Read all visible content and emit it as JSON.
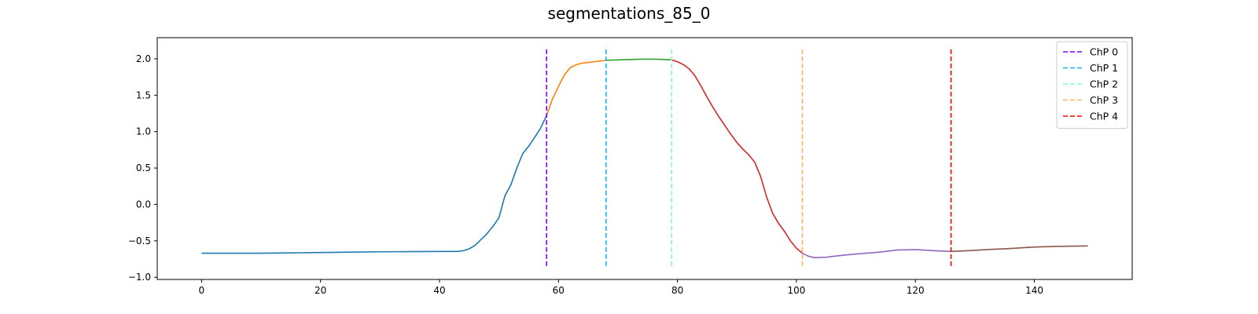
{
  "chart_data": {
    "type": "line",
    "title": "segmentations_85_0",
    "xlabel": "",
    "ylabel": "",
    "xlim": [
      -7.45,
      156.45
    ],
    "ylim": [
      -1.03,
      2.29
    ],
    "xticks": [
      0,
      20,
      40,
      60,
      80,
      100,
      120,
      140
    ],
    "yticks": [
      -1.0,
      -0.5,
      0.0,
      0.5,
      1.0,
      1.5,
      2.0
    ],
    "grid": false,
    "legend_position": "top-right",
    "series": [
      {
        "color": "#1f77b4",
        "points": [
          [
            0,
            -0.67
          ],
          [
            5,
            -0.67
          ],
          [
            10,
            -0.67
          ],
          [
            15,
            -0.665
          ],
          [
            20,
            -0.66
          ],
          [
            25,
            -0.655
          ],
          [
            30,
            -0.65
          ],
          [
            35,
            -0.648
          ],
          [
            40,
            -0.645
          ],
          [
            43,
            -0.645
          ],
          [
            44,
            -0.635
          ],
          [
            45,
            -0.61
          ],
          [
            46,
            -0.56
          ],
          [
            47,
            -0.48
          ],
          [
            48,
            -0.4
          ],
          [
            49,
            -0.3
          ],
          [
            50,
            -0.18
          ],
          [
            51,
            0.12
          ],
          [
            52,
            0.27
          ],
          [
            53,
            0.5
          ],
          [
            54,
            0.7
          ],
          [
            55,
            0.8
          ],
          [
            56,
            0.92
          ],
          [
            57,
            1.05
          ],
          [
            58,
            1.22
          ]
        ]
      },
      {
        "color": "#ff7f0e",
        "points": [
          [
            58,
            1.22
          ],
          [
            59,
            1.45
          ],
          [
            60,
            1.62
          ],
          [
            61,
            1.78
          ],
          [
            62,
            1.88
          ],
          [
            63,
            1.92
          ],
          [
            64,
            1.94
          ],
          [
            65,
            1.95
          ],
          [
            66,
            1.96
          ],
          [
            67,
            1.97
          ],
          [
            68,
            1.98
          ]
        ]
      },
      {
        "color": "#2ca02c",
        "points": [
          [
            68,
            1.98
          ],
          [
            70,
            1.985
          ],
          [
            72,
            1.99
          ],
          [
            74,
            1.995
          ],
          [
            76,
            1.995
          ],
          [
            78,
            1.99
          ],
          [
            79,
            1.985
          ]
        ]
      },
      {
        "color": "#d62728",
        "points": [
          [
            79,
            1.985
          ],
          [
            80,
            1.96
          ],
          [
            81,
            1.92
          ],
          [
            82,
            1.86
          ],
          [
            83,
            1.76
          ],
          [
            84,
            1.62
          ],
          [
            85,
            1.47
          ],
          [
            86,
            1.33
          ],
          [
            87,
            1.2
          ],
          [
            88,
            1.08
          ],
          [
            89,
            0.96
          ],
          [
            90,
            0.85
          ],
          [
            91,
            0.76
          ],
          [
            92,
            0.68
          ],
          [
            93,
            0.58
          ],
          [
            94,
            0.38
          ],
          [
            95,
            0.1
          ],
          [
            96,
            -0.12
          ],
          [
            97,
            -0.26
          ],
          [
            98,
            -0.37
          ],
          [
            99,
            -0.5
          ],
          [
            100,
            -0.6
          ],
          [
            101,
            -0.67
          ]
        ]
      },
      {
        "color": "#9467bd",
        "points": [
          [
            101,
            -0.67
          ],
          [
            102,
            -0.71
          ],
          [
            103,
            -0.73
          ],
          [
            105,
            -0.725
          ],
          [
            107,
            -0.705
          ],
          [
            110,
            -0.68
          ],
          [
            114,
            -0.655
          ],
          [
            117,
            -0.625
          ],
          [
            120,
            -0.62
          ],
          [
            123,
            -0.635
          ],
          [
            126,
            -0.645
          ]
        ]
      },
      {
        "color": "#8c564b",
        "points": [
          [
            126,
            -0.645
          ],
          [
            129,
            -0.635
          ],
          [
            132,
            -0.62
          ],
          [
            136,
            -0.605
          ],
          [
            140,
            -0.585
          ],
          [
            144,
            -0.575
          ],
          [
            149,
            -0.57
          ]
        ]
      }
    ],
    "changepoints": [
      {
        "name": "ChP 0",
        "x": 58,
        "color": "#7f00ff"
      },
      {
        "name": "ChP 1",
        "x": 68,
        "color": "#19b4f0"
      },
      {
        "name": "ChP 2",
        "x": 79,
        "color": "#80ffb4"
      },
      {
        "name": "ChP 3",
        "x": 101,
        "color": "#ffb360"
      },
      {
        "name": "ChP 4",
        "x": 126,
        "color": "#ff0000"
      }
    ]
  }
}
